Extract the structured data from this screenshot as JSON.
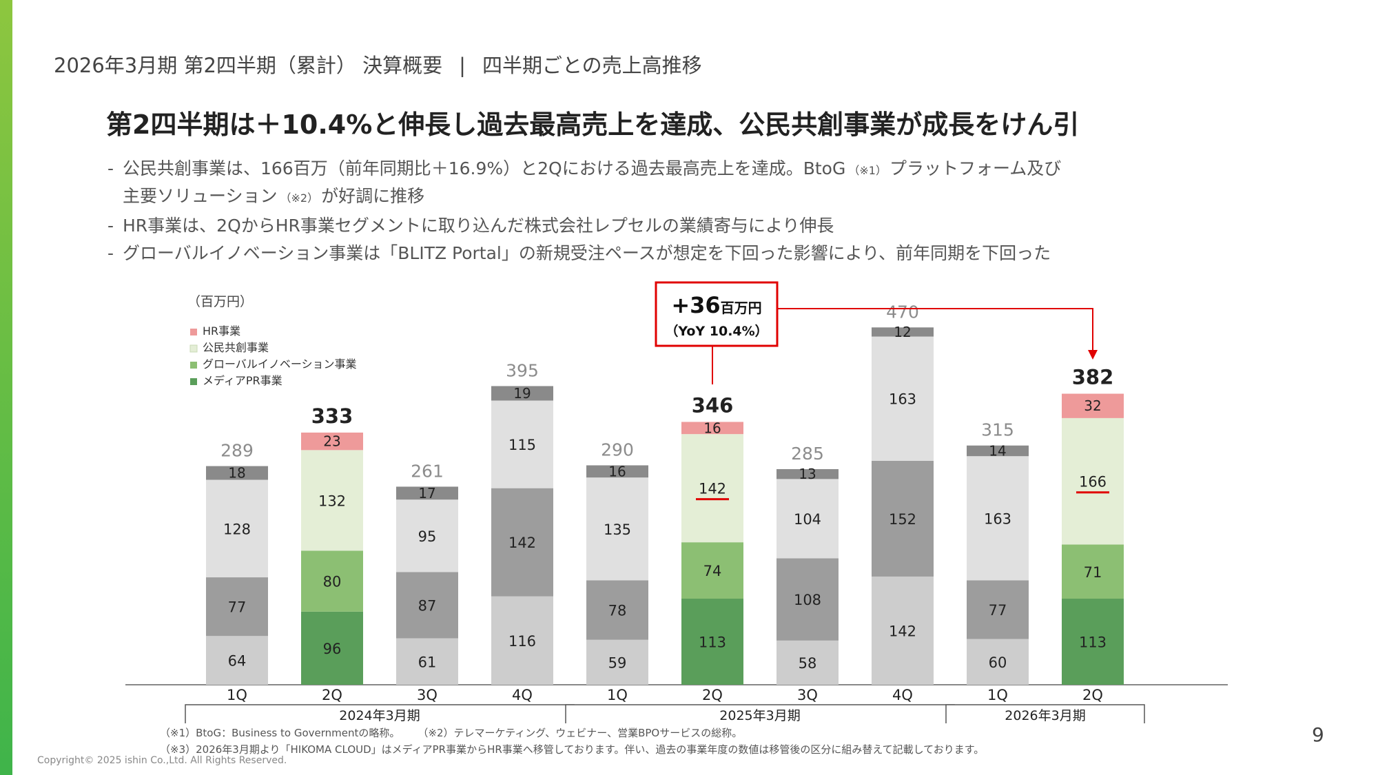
{
  "header": {
    "section": "2026年3月期 第2四半期（累計） 決算概要",
    "separator": "|",
    "topic": "四半期ごとの売上高推移"
  },
  "headline": "第2四半期は＋10.4%と伸長し過去最高売上を達成、公民共創事業が成長をけん引",
  "bullets": [
    {
      "parts": [
        {
          "text": "公民共創事業は、166百万（前年同期比＋16.9%）と2Qにおける過去最高売上を達成。BtoG"
        },
        {
          "text": "（※1）",
          "note": true
        },
        {
          "text": "プラットフォーム及び"
        }
      ],
      "continuation": [
        {
          "text": "主要ソリューション"
        },
        {
          "text": "（※2）",
          "note": true
        },
        {
          "text": "が好調に推移"
        }
      ]
    },
    {
      "parts": [
        {
          "text": "HR事業は、2QからHR事業セグメントに取り込んだ株式会社レプセルの業績寄与により伸長"
        }
      ]
    },
    {
      "parts": [
        {
          "text": "グローバルイノベーション事業は「BLITZ Portal」の新規受注ペースが想定を下回った影響により、前年同期を下回った"
        }
      ]
    }
  ],
  "chart_data": {
    "type": "bar",
    "stacked": true,
    "unit": "（百万円）",
    "categories": [
      "1Q",
      "2Q",
      "3Q",
      "4Q",
      "1Q",
      "2Q",
      "3Q",
      "4Q",
      "1Q",
      "2Q"
    ],
    "periods": [
      {
        "label": "2024年3月期",
        "quarters": 4
      },
      {
        "label": "2025年3月期",
        "quarters": 4
      },
      {
        "label": "2026年3月期",
        "quarters": 2
      }
    ],
    "series": [
      {
        "name": "メディアPR事業",
        "values": [
          64,
          96,
          61,
          116,
          59,
          113,
          58,
          142,
          60,
          113
        ]
      },
      {
        "name": "グローバルイノベーション事業",
        "values": [
          77,
          80,
          87,
          142,
          78,
          74,
          108,
          152,
          77,
          71
        ]
      },
      {
        "name": "公民共創事業",
        "values": [
          128,
          132,
          95,
          115,
          135,
          142,
          104,
          163,
          163,
          166
        ]
      },
      {
        "name": "HR事業",
        "values": [
          18,
          23,
          17,
          19,
          16,
          16,
          13,
          12,
          14,
          32
        ]
      }
    ],
    "totals": [
      289,
      333,
      261,
      395,
      290,
      346,
      285,
      470,
      315,
      382
    ],
    "legend_order": [
      "HR事業",
      "公民共創事業",
      "グローバルイノベーション事業",
      "メディアPR事業"
    ],
    "legend_position": "top-left",
    "highlighted_quarters": [
      1,
      5,
      9
    ],
    "colors": {
      "media_pr": "#5a9e5a",
      "global_innovation": "#8cbf73",
      "public_private": "#e4eed6",
      "hr": "#ee9a9a",
      "muted_light": "#e0e0e0",
      "muted_mid": "#cdcdcd",
      "muted_dark": "#9d9d9d",
      "muted_cap": "#8a8a8a",
      "highlight_red": "#e00000"
    },
    "callout": {
      "main": "+36",
      "unit": "百万円",
      "sub": "（YoY 10.4%）",
      "from_quarter": 5,
      "to_quarter": 9
    },
    "underlined_labels": [
      {
        "quarter": 5,
        "series": "公民共創事業"
      },
      {
        "quarter": 9,
        "series": "公民共創事業"
      }
    ],
    "ylim": [
      0,
      470
    ],
    "grid": false
  },
  "footnotes": {
    "note1": "（※1）BtoG：Business to Governmentの略称。",
    "note2": "（※2）テレマーケティング、ウェビナー、営業BPOサービスの総称。",
    "note3": "（※3）2026年3月期より「HIKOMA CLOUD」はメディアPR事業からHR事業へ移管しております。伴い、過去の事業年度の数値は移管後の区分に組み替えて記載しております。"
  },
  "copyright": "Copyright©  2025 ishin Co.,Ltd. All Rights Reserved.",
  "page_number": "9"
}
